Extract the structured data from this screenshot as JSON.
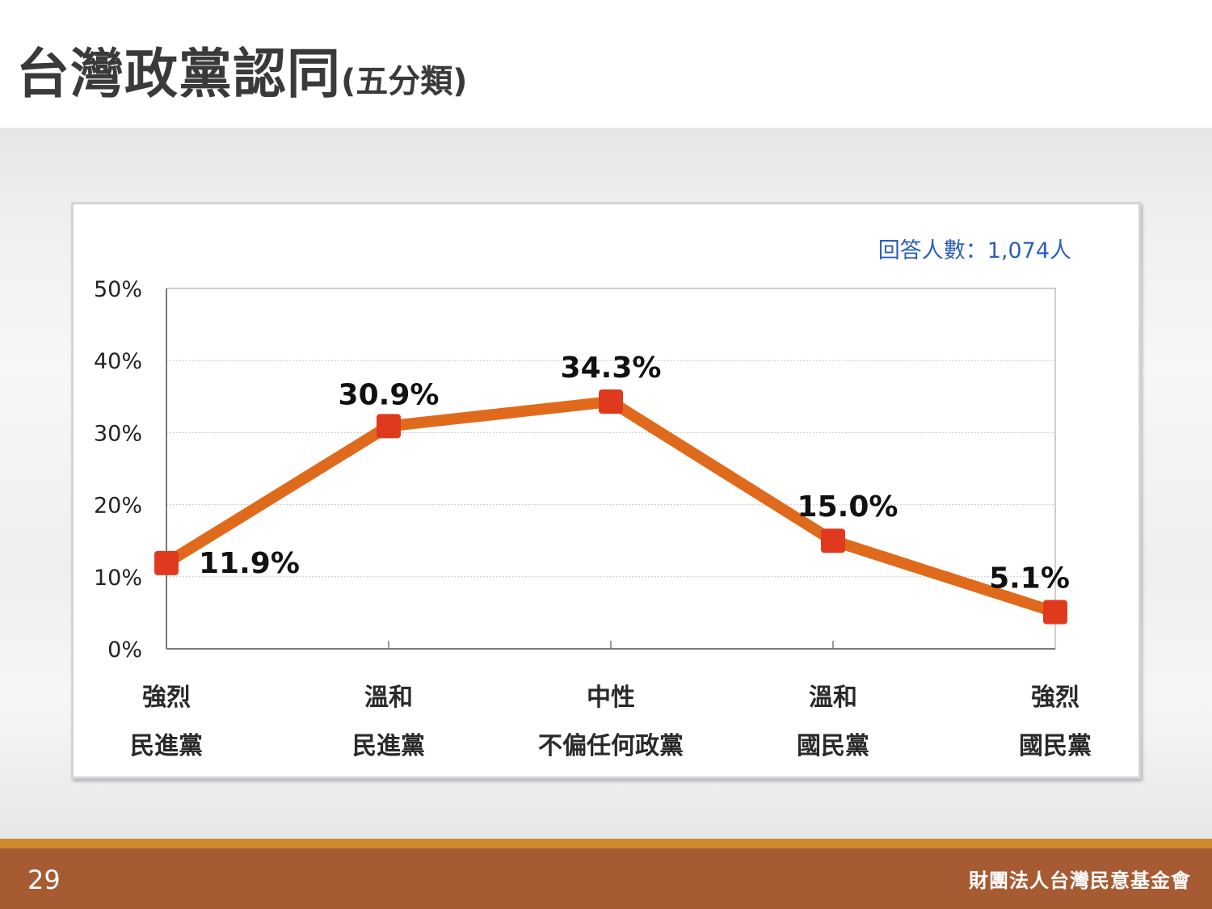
{
  "slide": {
    "title_main": "台灣政黨認同",
    "title_sub": "(五分類)",
    "page_number": "29",
    "organization": "財團法人台灣民意基金會"
  },
  "colors": {
    "line": "#e06a1c",
    "marker": "#e03a1e",
    "note": "#2b5fb8",
    "footer": "#a65b33",
    "footer_stripe": "#d08a2e"
  },
  "chart_data": {
    "type": "line",
    "note": "回答人數：1,074人",
    "categories": [
      [
        "強烈",
        "民進黨"
      ],
      [
        "溫和",
        "民進黨"
      ],
      [
        "中性",
        "不偏任何政黨"
      ],
      [
        "溫和",
        "國民黨"
      ],
      [
        "強烈",
        "國民黨"
      ]
    ],
    "values": [
      11.9,
      30.9,
      34.3,
      15.0,
      5.1
    ],
    "value_labels": [
      "11.9%",
      "30.9%",
      "34.3%",
      "15.0%",
      "5.1%"
    ],
    "yticks": [
      "0%",
      "10%",
      "20%",
      "30%",
      "40%",
      "50%"
    ],
    "ylim": [
      0,
      50
    ],
    "grid": true,
    "legend": "none"
  }
}
